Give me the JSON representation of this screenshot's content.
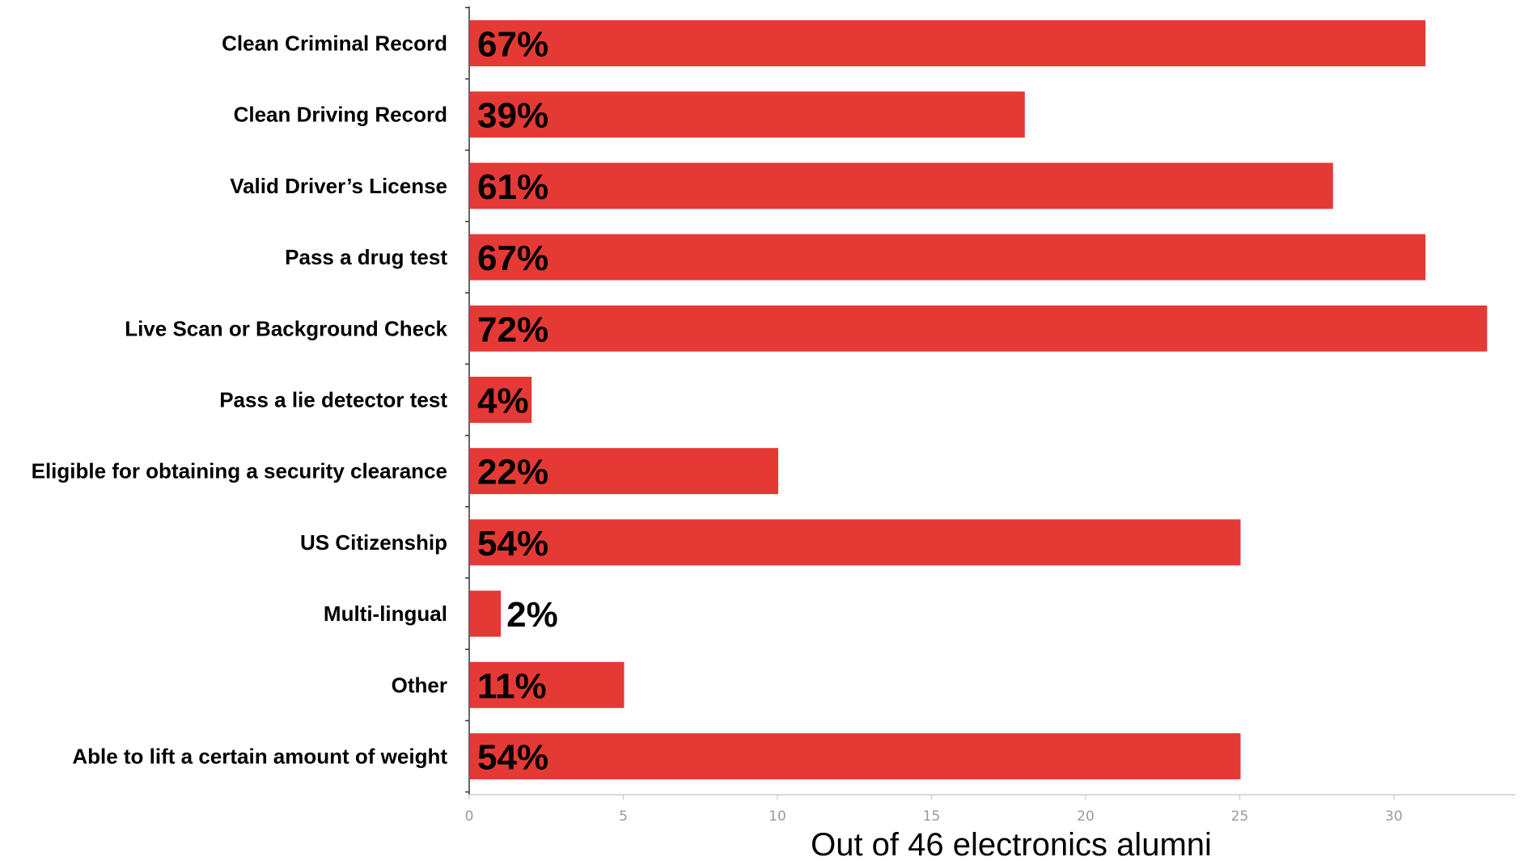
{
  "chart_data": {
    "type": "bar",
    "orientation": "horizontal",
    "categories": [
      "Clean Criminal Record",
      "Clean Driving Record",
      "Valid Driver’s License",
      "Pass a drug test",
      "Live Scan or Background Check",
      "Pass a lie detector test",
      "Eligible for obtaining a security clearance",
      "US Citizenship",
      "Multi-lingual",
      "Other",
      "Able to lift a certain amount of weight"
    ],
    "values": [
      31,
      18,
      28,
      31,
      33,
      2,
      10,
      25,
      1,
      5,
      25
    ],
    "data_labels": [
      "67%",
      "39%",
      "61%",
      "67%",
      "72%",
      "4%",
      "22%",
      "54%",
      "2%",
      "11%",
      "54%"
    ],
    "xlabel": "Out of 46 electronics alumni",
    "ylabel": "",
    "title": "",
    "xlim": [
      0,
      34
    ],
    "xticks": [
      "0",
      "5",
      "10",
      "15",
      "20",
      "25",
      "30"
    ],
    "bar_color": "#e53935",
    "grid": false,
    "legend": "none"
  }
}
